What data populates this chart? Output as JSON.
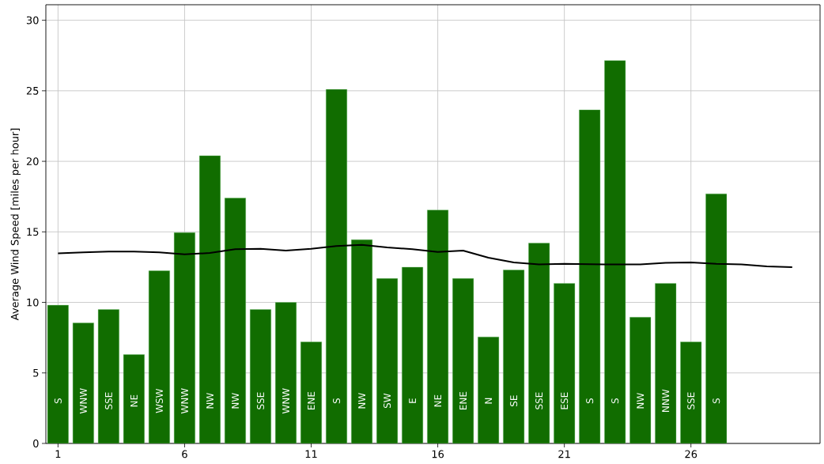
{
  "chart_data": {
    "type": "bar",
    "ylabel": "Average Wind Speed [miles per hour]",
    "xlim": [
      0.52,
      31.1
    ],
    "ylim": [
      0,
      31.1
    ],
    "xticks": [
      1,
      6,
      11,
      16,
      21,
      26
    ],
    "yticks": [
      0,
      5,
      10,
      15,
      20,
      25,
      30
    ],
    "grid": true,
    "series": [
      {
        "color": "#116d00",
        "value_labels": [
          "S",
          "WNW",
          "SSE",
          "NE",
          "WSW",
          "WNW",
          "NW",
          "NW",
          "SSE",
          "WNW",
          "ENE",
          "S",
          "NW",
          "SW",
          "E",
          "NE",
          "ENE",
          "N",
          "SE",
          "SSE",
          "ESE",
          "S",
          "S",
          "NW",
          "NNW",
          "SSE",
          "S"
        ],
        "x": [
          1,
          2,
          3,
          4,
          5,
          6,
          7,
          8,
          9,
          10,
          11,
          12,
          13,
          14,
          15,
          16,
          17,
          18,
          19,
          20,
          21,
          22,
          23,
          24,
          25,
          26,
          27
        ],
        "values": [
          9.8,
          8.55,
          9.5,
          6.3,
          12.25,
          14.95,
          20.4,
          17.4,
          9.5,
          10.0,
          7.2,
          25.1,
          14.45,
          11.7,
          12.5,
          16.55,
          11.7,
          7.55,
          12.3,
          14.2,
          11.35,
          23.65,
          27.15,
          8.95,
          11.35,
          7.2,
          17.7
        ]
      },
      {
        "type": "line",
        "color": "#000000",
        "x": [
          1,
          2,
          3,
          4,
          5,
          6,
          7,
          8,
          9,
          10,
          11,
          12,
          13,
          14,
          15,
          16,
          17,
          18,
          19,
          20,
          21,
          22,
          23,
          24,
          25,
          26,
          27,
          28,
          29,
          30
        ],
        "values": [
          13.47,
          13.55,
          13.6,
          13.6,
          13.55,
          13.4,
          13.5,
          13.77,
          13.8,
          13.67,
          13.8,
          14.0,
          14.08,
          13.9,
          13.77,
          13.58,
          13.67,
          13.17,
          12.83,
          12.69,
          12.74,
          12.7,
          12.69,
          12.69,
          12.8,
          12.83,
          12.74,
          12.69,
          12.55,
          12.5
        ]
      }
    ]
  }
}
